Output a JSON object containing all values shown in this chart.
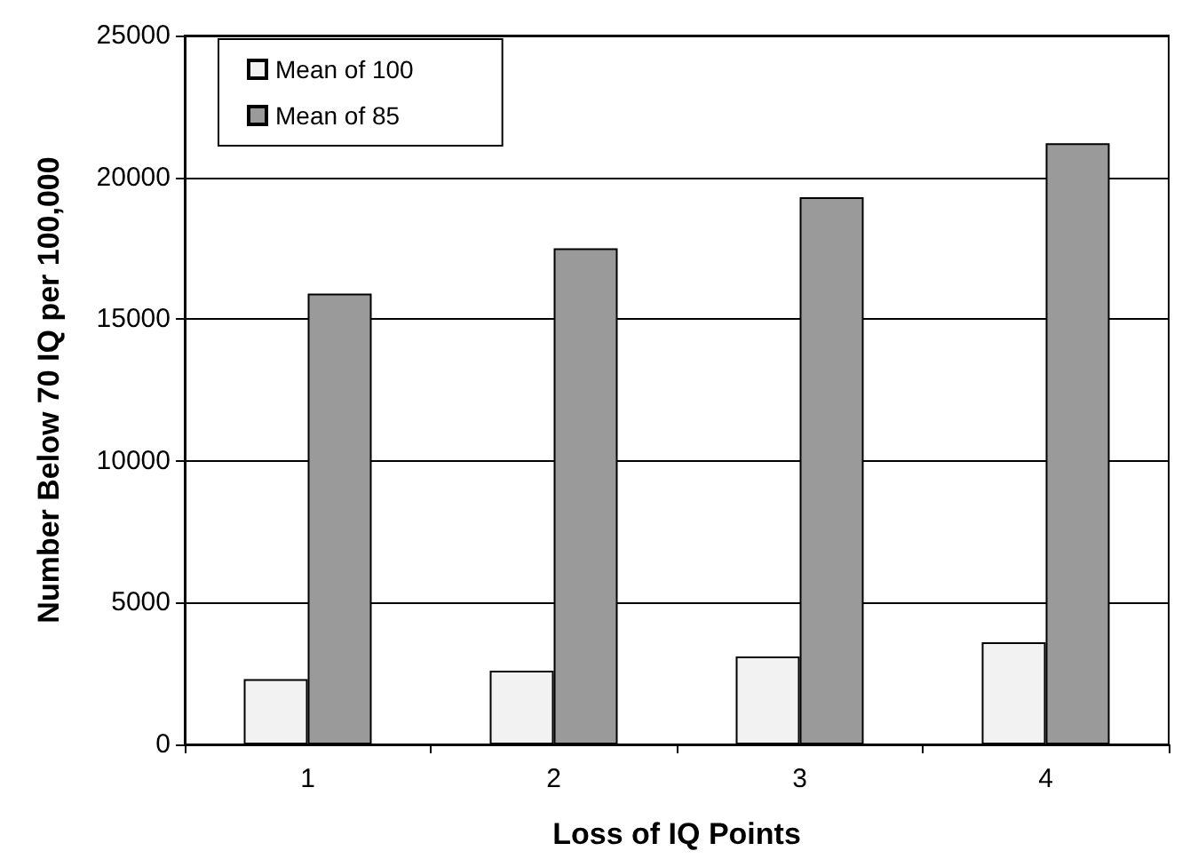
{
  "chart_data": {
    "type": "bar",
    "xlabel": "Loss of IQ Points",
    "ylabel": "Number Below 70 IQ per 100,000",
    "categories": [
      "1",
      "2",
      "3",
      "4"
    ],
    "series": [
      {
        "name": "Mean of 100",
        "color": "#f2f2f2",
        "values": [
          2300,
          2600,
          3100,
          3600
        ]
      },
      {
        "name": "Mean of 85",
        "color": "#9a9a9a",
        "values": [
          15900,
          17500,
          19300,
          21200
        ]
      }
    ],
    "ylim": [
      0,
      25000
    ],
    "yticks": [
      0,
      5000,
      10000,
      15000,
      20000,
      25000
    ],
    "grid": "y",
    "legend": "top left"
  }
}
